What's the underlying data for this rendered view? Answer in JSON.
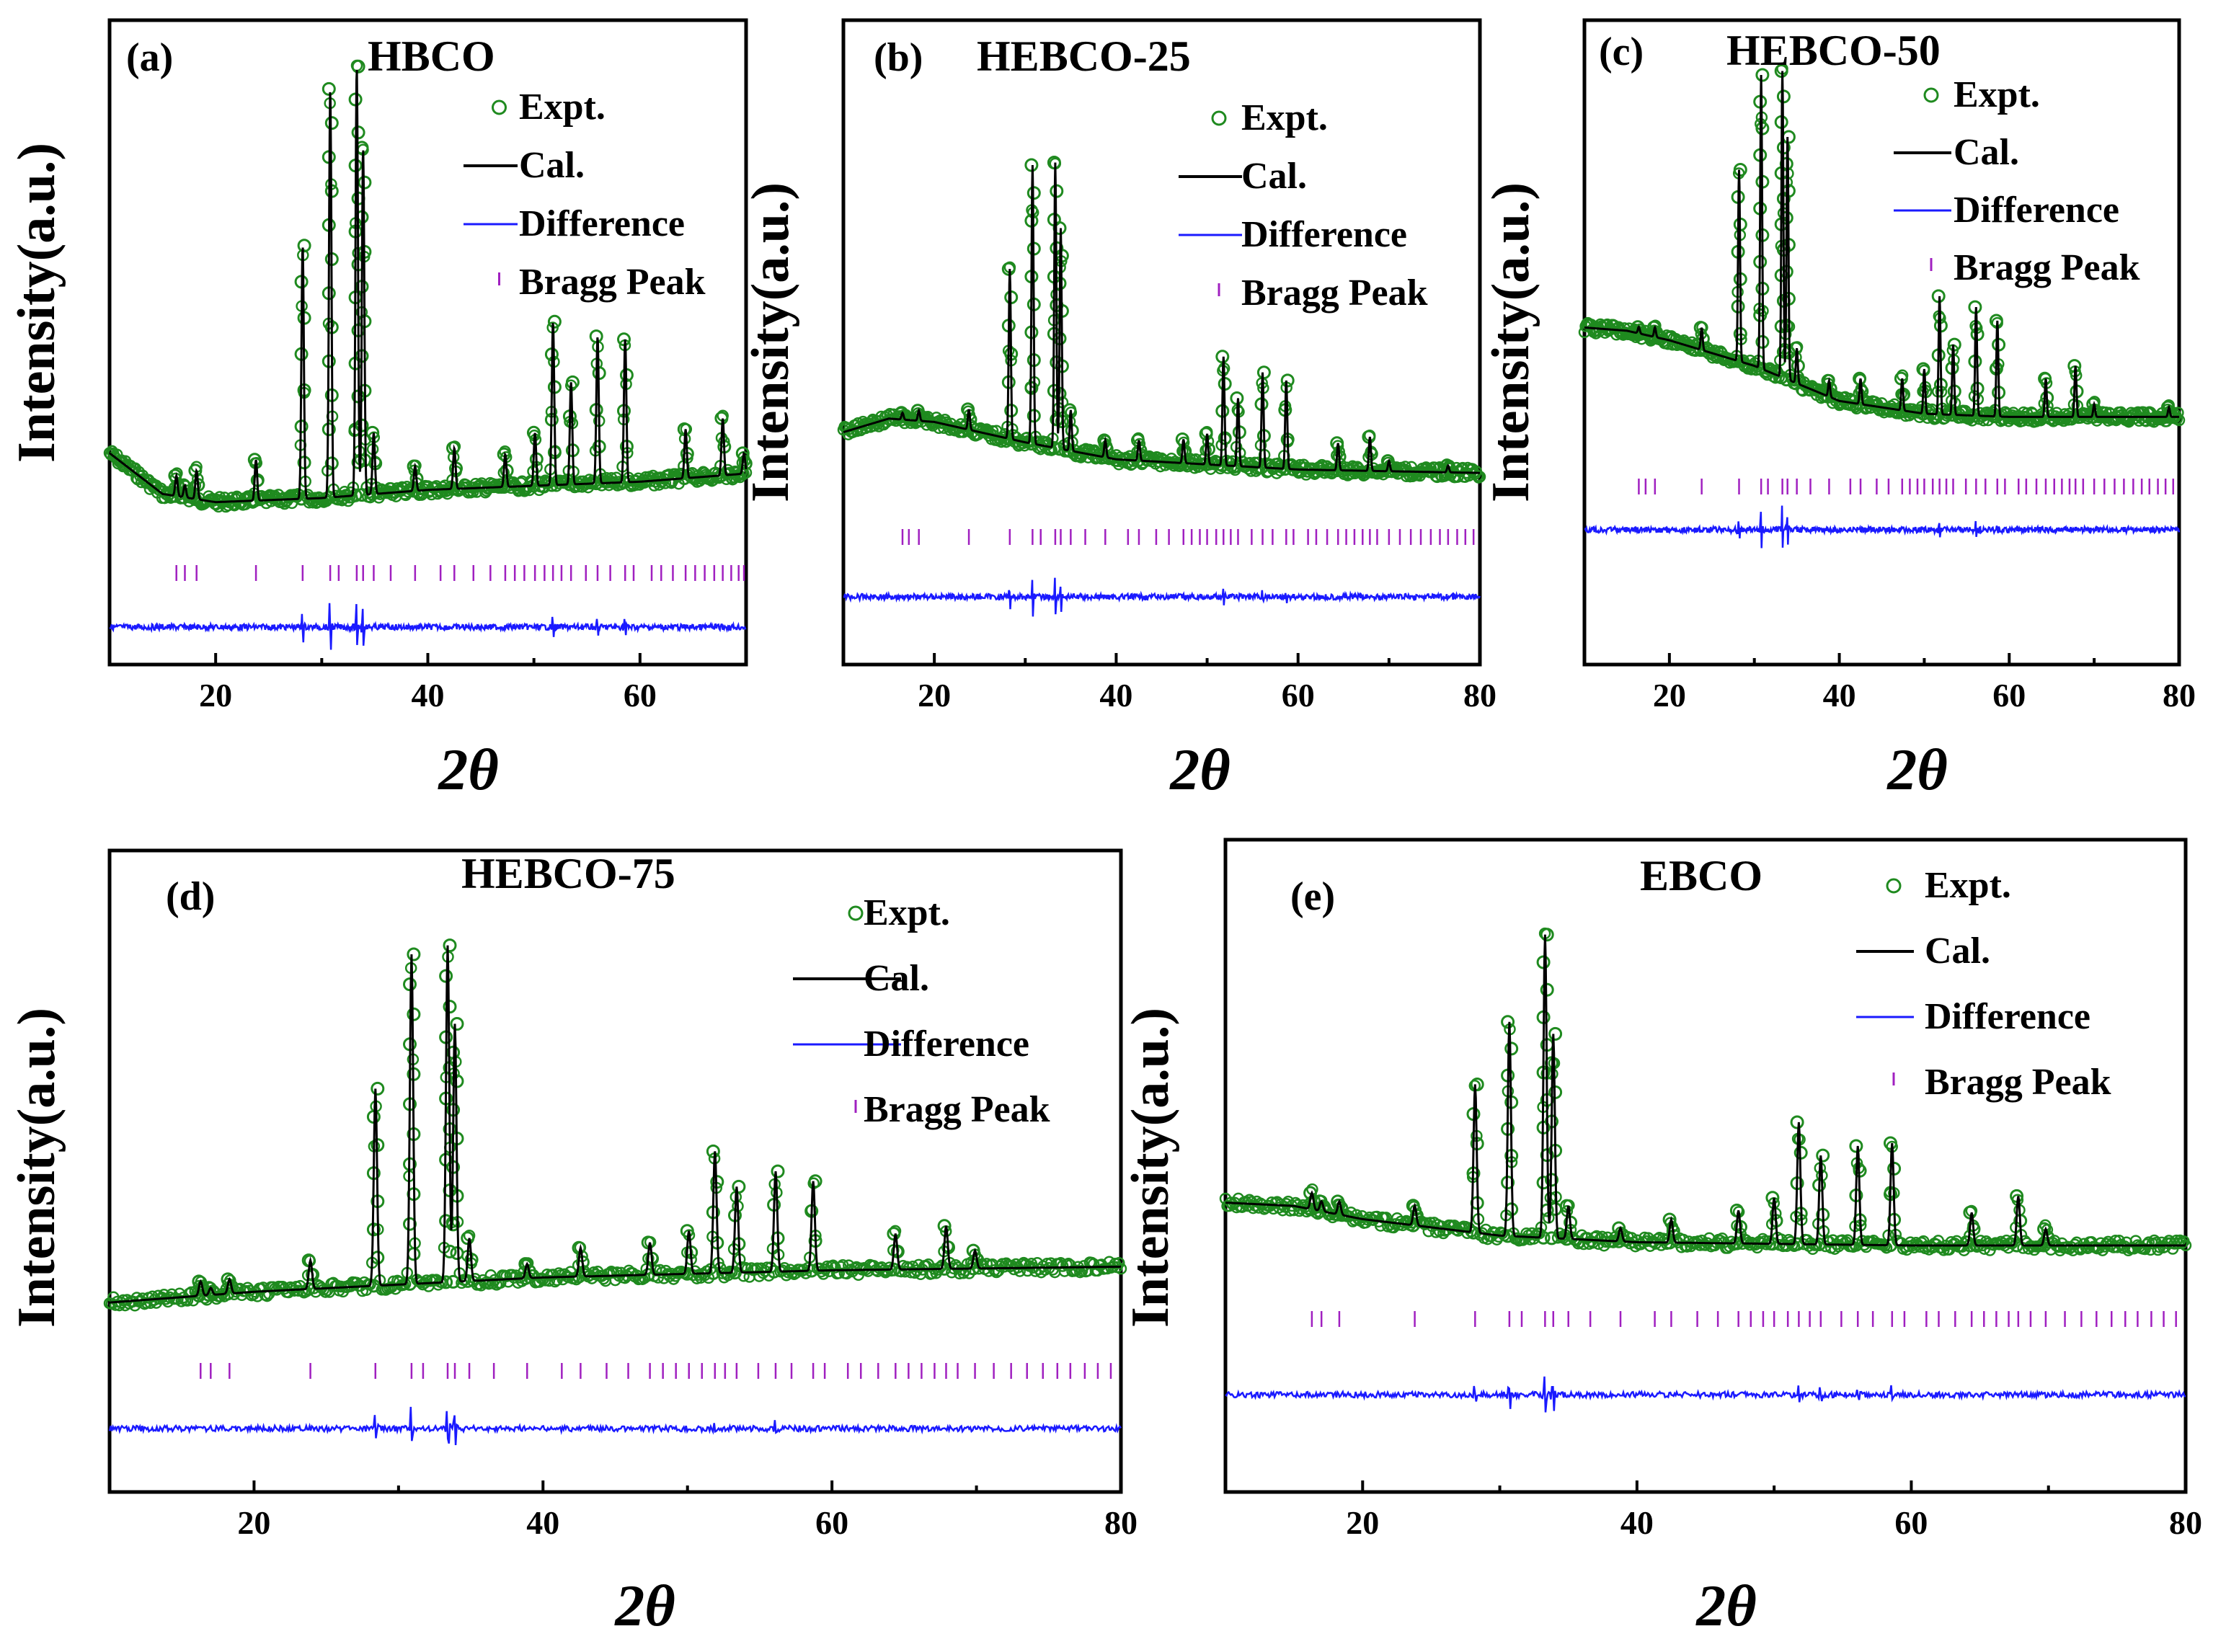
{
  "figure": {
    "x_axis_label": "2θ",
    "y_axis_label": "Intensity(a.u.)"
  },
  "legend": {
    "expt": "Expt.",
    "cal": "Cal.",
    "difference": "Difference",
    "bragg": "Bragg Peak"
  },
  "colors": {
    "expt": "#1f8a1f",
    "cal": "#000000",
    "difference": "#1a1aff",
    "bragg": "#a020c0"
  },
  "chart_data": [
    {
      "type": "line",
      "panel": "(a)",
      "title": "HBCO",
      "xlabel": "2θ",
      "ylabel": "Intensity(a.u.)",
      "xlim": [
        10,
        70
      ],
      "xticks": [
        20,
        40,
        60
      ],
      "baseline_profile": [
        [
          10,
          0.17
        ],
        [
          15,
          0.07
        ],
        [
          20,
          0.05
        ],
        [
          30,
          0.06
        ],
        [
          40,
          0.08
        ],
        [
          60,
          0.1
        ],
        [
          70,
          0.12
        ]
      ],
      "peaks": [
        {
          "pos": 16.3,
          "h": 0.05
        },
        {
          "pos": 17.1,
          "h": 0.03
        },
        {
          "pos": 18.2,
          "h": 0.07
        },
        {
          "pos": 23.8,
          "h": 0.1
        },
        {
          "pos": 28.2,
          "h": 0.62
        },
        {
          "pos": 30.8,
          "h": 1.0
        },
        {
          "pos": 33.3,
          "h": 1.05
        },
        {
          "pos": 33.9,
          "h": 0.85
        },
        {
          "pos": 34.9,
          "h": 0.15
        },
        {
          "pos": 38.8,
          "h": 0.06
        },
        {
          "pos": 42.5,
          "h": 0.1
        },
        {
          "pos": 47.3,
          "h": 0.08
        },
        {
          "pos": 50.1,
          "h": 0.13
        },
        {
          "pos": 51.8,
          "h": 0.4
        },
        {
          "pos": 53.5,
          "h": 0.25
        },
        {
          "pos": 56.0,
          "h": 0.36
        },
        {
          "pos": 58.6,
          "h": 0.35
        },
        {
          "pos": 64.3,
          "h": 0.12
        },
        {
          "pos": 67.8,
          "h": 0.14
        },
        {
          "pos": 69.8,
          "h": 0.05
        }
      ],
      "bragg_positions": [
        16.3,
        17.1,
        18.2,
        23.8,
        28.2,
        30.8,
        31.6,
        33.3,
        33.9,
        34.9,
        36.5,
        38.8,
        41.2,
        42.5,
        44.3,
        45.9,
        47.3,
        48.2,
        49.1,
        50.1,
        51.0,
        51.8,
        52.6,
        53.5,
        54.9,
        56.0,
        57.2,
        58.6,
        59.4,
        61.1,
        62.0,
        63.1,
        64.3,
        65.2,
        66.1,
        67.0,
        67.8,
        68.6,
        69.3,
        69.8
      ]
    },
    {
      "type": "line",
      "panel": "(b)",
      "title": "HEBCO-25",
      "xlabel": "2θ",
      "ylabel": "Intensity(a.u.)",
      "xlim": [
        10,
        80
      ],
      "xticks": [
        20,
        40,
        60,
        80
      ],
      "baseline_profile": [
        [
          10,
          0.16
        ],
        [
          15,
          0.2
        ],
        [
          20,
          0.19
        ],
        [
          30,
          0.13
        ],
        [
          40,
          0.08
        ],
        [
          60,
          0.05
        ],
        [
          80,
          0.04
        ]
      ],
      "peaks": [
        {
          "pos": 16.5,
          "h": 0.02
        },
        {
          "pos": 18.3,
          "h": 0.03
        },
        {
          "pos": 23.8,
          "h": 0.06
        },
        {
          "pos": 28.3,
          "h": 0.5
        },
        {
          "pos": 30.8,
          "h": 0.82
        },
        {
          "pos": 33.3,
          "h": 0.84
        },
        {
          "pos": 33.9,
          "h": 0.65
        },
        {
          "pos": 35.0,
          "h": 0.12
        },
        {
          "pos": 38.8,
          "h": 0.05
        },
        {
          "pos": 42.5,
          "h": 0.06
        },
        {
          "pos": 47.4,
          "h": 0.07
        },
        {
          "pos": 50.0,
          "h": 0.09
        },
        {
          "pos": 51.8,
          "h": 0.32
        },
        {
          "pos": 53.4,
          "h": 0.2
        },
        {
          "pos": 56.1,
          "h": 0.28
        },
        {
          "pos": 58.7,
          "h": 0.26
        },
        {
          "pos": 64.4,
          "h": 0.08
        },
        {
          "pos": 67.9,
          "h": 0.1
        },
        {
          "pos": 70.0,
          "h": 0.03
        },
        {
          "pos": 76.5,
          "h": 0.02
        }
      ],
      "bragg_positions": [
        16.5,
        17.2,
        18.3,
        23.8,
        28.3,
        30.8,
        31.7,
        33.3,
        33.9,
        35.0,
        36.6,
        38.8,
        41.3,
        42.5,
        44.4,
        45.8,
        47.4,
        48.3,
        49.2,
        50.0,
        51.0,
        51.8,
        52.6,
        53.4,
        54.9,
        56.1,
        57.2,
        58.7,
        59.5,
        61.1,
        62.0,
        63.2,
        64.4,
        65.3,
        66.2,
        67.1,
        67.9,
        68.7,
        70.0,
        71.2,
        72.4,
        73.5,
        74.6,
        75.6,
        76.5,
        77.5,
        78.4,
        79.3
      ]
    },
    {
      "type": "line",
      "panel": "(c)",
      "title": "HEBCO-50",
      "xlabel": "2θ",
      "ylabel": "Intensity(a.u.)",
      "xlim": [
        10,
        80
      ],
      "xticks": [
        20,
        40,
        60,
        80
      ],
      "baseline_profile": [
        [
          10,
          0.34
        ],
        [
          15,
          0.33
        ],
        [
          20,
          0.3
        ],
        [
          30,
          0.22
        ],
        [
          40,
          0.11
        ],
        [
          50,
          0.07
        ],
        [
          60,
          0.06
        ],
        [
          80,
          0.06
        ]
      ],
      "peaks": [
        {
          "pos": 16.4,
          "h": 0.02
        },
        {
          "pos": 18.3,
          "h": 0.03
        },
        {
          "pos": 23.8,
          "h": 0.07
        },
        {
          "pos": 28.2,
          "h": 0.6
        },
        {
          "pos": 30.8,
          "h": 0.92
        },
        {
          "pos": 33.3,
          "h": 0.96
        },
        {
          "pos": 33.9,
          "h": 0.76
        },
        {
          "pos": 35.0,
          "h": 0.11
        },
        {
          "pos": 38.8,
          "h": 0.05
        },
        {
          "pos": 42.5,
          "h": 0.08
        },
        {
          "pos": 47.4,
          "h": 0.1
        },
        {
          "pos": 50.0,
          "h": 0.14
        },
        {
          "pos": 51.8,
          "h": 0.37
        },
        {
          "pos": 53.4,
          "h": 0.22
        },
        {
          "pos": 56.1,
          "h": 0.34
        },
        {
          "pos": 58.6,
          "h": 0.3
        },
        {
          "pos": 64.3,
          "h": 0.12
        },
        {
          "pos": 67.8,
          "h": 0.16
        },
        {
          "pos": 70.0,
          "h": 0.04
        },
        {
          "pos": 78.8,
          "h": 0.03
        }
      ],
      "bragg_positions": [
        16.4,
        17.2,
        18.3,
        23.8,
        28.2,
        30.8,
        31.6,
        33.3,
        33.9,
        35.0,
        36.6,
        38.8,
        41.3,
        42.5,
        44.4,
        45.8,
        47.4,
        48.3,
        49.2,
        50.0,
        51.0,
        51.8,
        52.6,
        53.4,
        54.9,
        56.1,
        57.2,
        58.6,
        59.5,
        61.1,
        62.0,
        63.2,
        64.3,
        65.3,
        66.2,
        67.1,
        67.8,
        68.7,
        70.0,
        71.2,
        72.4,
        73.5,
        74.6,
        75.6,
        76.5,
        77.5,
        78.4,
        79.3
      ]
    },
    {
      "type": "line",
      "panel": "(d)",
      "title": "HEBCO-75",
      "xlabel": "2θ",
      "ylabel": "Intensity(a.u.)",
      "xlim": [
        10,
        80
      ],
      "xticks": [
        20,
        40,
        60,
        80
      ],
      "baseline_profile": [
        [
          10,
          0.05
        ],
        [
          20,
          0.08
        ],
        [
          30,
          0.1
        ],
        [
          40,
          0.12
        ],
        [
          60,
          0.14
        ],
        [
          80,
          0.15
        ]
      ],
      "peaks": [
        {
          "pos": 16.3,
          "h": 0.04
        },
        {
          "pos": 17.0,
          "h": 0.02
        },
        {
          "pos": 18.3,
          "h": 0.04
        },
        {
          "pos": 23.9,
          "h": 0.08
        },
        {
          "pos": 28.4,
          "h": 0.55
        },
        {
          "pos": 30.9,
          "h": 0.92
        },
        {
          "pos": 33.4,
          "h": 0.94
        },
        {
          "pos": 33.9,
          "h": 0.72
        },
        {
          "pos": 34.9,
          "h": 0.12
        },
        {
          "pos": 38.9,
          "h": 0.04
        },
        {
          "pos": 42.6,
          "h": 0.08
        },
        {
          "pos": 47.4,
          "h": 0.09
        },
        {
          "pos": 50.1,
          "h": 0.12
        },
        {
          "pos": 51.9,
          "h": 0.34
        },
        {
          "pos": 53.4,
          "h": 0.24
        },
        {
          "pos": 56.1,
          "h": 0.28
        },
        {
          "pos": 58.7,
          "h": 0.25
        },
        {
          "pos": 64.4,
          "h": 0.1
        },
        {
          "pos": 67.9,
          "h": 0.12
        },
        {
          "pos": 69.9,
          "h": 0.05
        }
      ],
      "bragg_positions": [
        16.3,
        17.0,
        18.3,
        23.9,
        28.4,
        30.9,
        31.7,
        33.4,
        33.9,
        34.9,
        36.6,
        38.9,
        41.3,
        42.6,
        44.4,
        45.9,
        47.4,
        48.3,
        49.2,
        50.1,
        51.0,
        51.9,
        52.6,
        53.4,
        54.9,
        56.1,
        57.2,
        58.7,
        59.5,
        61.1,
        62.0,
        63.2,
        64.4,
        65.3,
        66.2,
        67.1,
        67.9,
        68.7,
        69.9,
        71.2,
        72.4,
        73.5,
        74.6,
        75.6,
        76.5,
        77.5,
        78.4,
        79.3
      ]
    },
    {
      "type": "line",
      "panel": "(e)",
      "title": "EBCO",
      "xlabel": "2θ",
      "ylabel": "Intensity(a.u.)",
      "xlim": [
        10,
        80
      ],
      "xticks": [
        20,
        40,
        60,
        80
      ],
      "baseline_profile": [
        [
          10,
          0.2
        ],
        [
          15,
          0.19
        ],
        [
          20,
          0.15
        ],
        [
          30,
          0.1
        ],
        [
          40,
          0.08
        ],
        [
          60,
          0.07
        ],
        [
          80,
          0.07
        ]
      ],
      "peaks": [
        {
          "pos": 16.3,
          "h": 0.05
        },
        {
          "pos": 17.0,
          "h": 0.03
        },
        {
          "pos": 18.3,
          "h": 0.04
        },
        {
          "pos": 23.8,
          "h": 0.06
        },
        {
          "pos": 28.2,
          "h": 0.45
        },
        {
          "pos": 30.7,
          "h": 0.65
        },
        {
          "pos": 33.3,
          "h": 0.92
        },
        {
          "pos": 33.9,
          "h": 0.62
        },
        {
          "pos": 35.0,
          "h": 0.1
        },
        {
          "pos": 38.8,
          "h": 0.04
        },
        {
          "pos": 42.5,
          "h": 0.07
        },
        {
          "pos": 47.4,
          "h": 0.1
        },
        {
          "pos": 50.0,
          "h": 0.14
        },
        {
          "pos": 51.8,
          "h": 0.37
        },
        {
          "pos": 53.4,
          "h": 0.27
        },
        {
          "pos": 56.1,
          "h": 0.3
        },
        {
          "pos": 58.6,
          "h": 0.31
        },
        {
          "pos": 64.4,
          "h": 0.1
        },
        {
          "pos": 67.8,
          "h": 0.15
        },
        {
          "pos": 69.8,
          "h": 0.05
        }
      ],
      "bragg_positions": [
        16.3,
        17.0,
        18.3,
        23.8,
        28.2,
        30.7,
        31.6,
        33.3,
        33.9,
        35.0,
        36.6,
        38.8,
        41.3,
        42.5,
        44.4,
        45.9,
        47.4,
        48.3,
        49.2,
        50.0,
        51.0,
        51.8,
        52.6,
        53.4,
        54.9,
        56.1,
        57.2,
        58.6,
        59.5,
        61.1,
        62.0,
        63.2,
        64.4,
        65.3,
        66.2,
        67.1,
        67.8,
        68.7,
        69.8,
        71.2,
        72.4,
        73.5,
        74.6,
        75.6,
        76.5,
        77.5,
        78.4,
        79.3
      ]
    }
  ]
}
